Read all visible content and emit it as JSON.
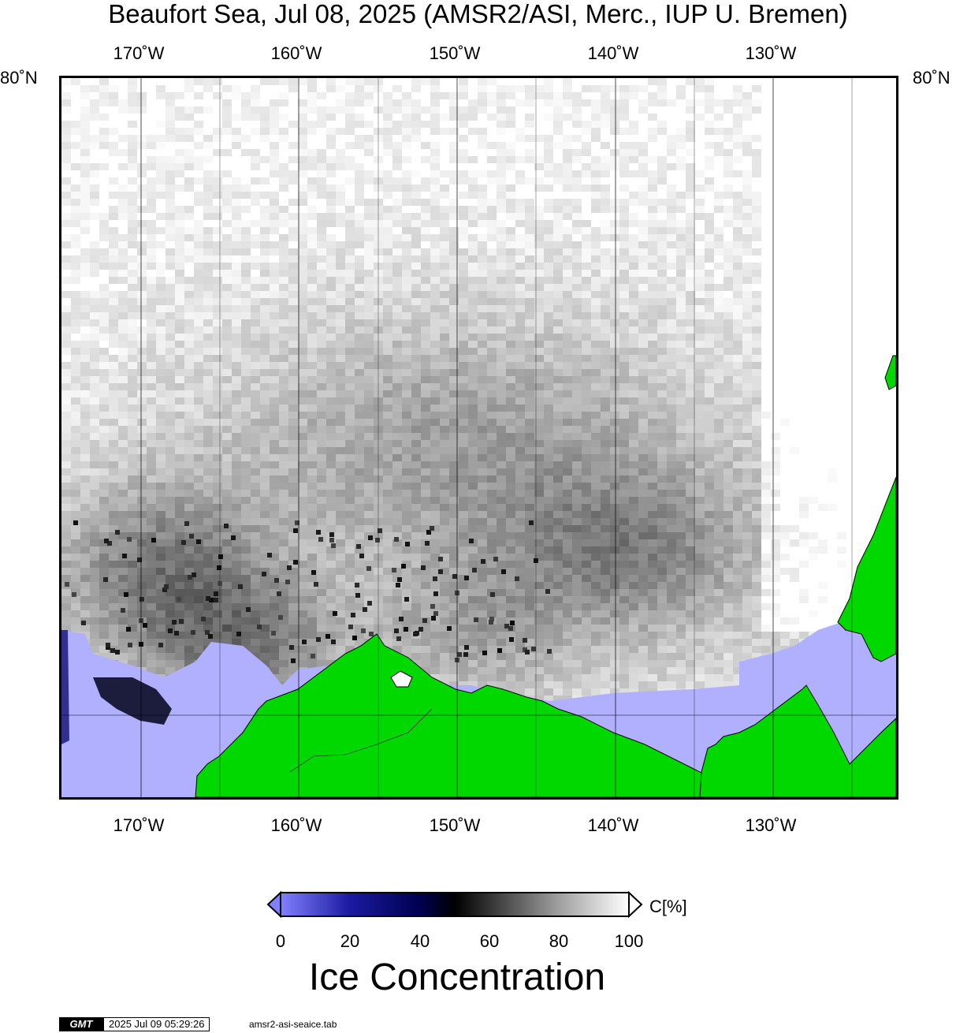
{
  "title": "Beaufort Sea, Jul 08, 2025 (AMSR2/ASI, Merc., IUP U. Bremen)",
  "lon_labels": [
    "170˚W",
    "160˚W",
    "150˚W",
    "140˚W",
    "130˚W"
  ],
  "lat_label": "80˚N",
  "colorbar": {
    "ticks": [
      "0",
      "20",
      "40",
      "60",
      "80",
      "100"
    ],
    "unit": "C[%]",
    "title": "Ice Concentration",
    "stops": [
      {
        "value": 0,
        "color": "#8080ff"
      },
      {
        "value": 20,
        "color": "#1a1aa0"
      },
      {
        "value": 40,
        "color": "#000050"
      },
      {
        "value": 50,
        "color": "#000000"
      },
      {
        "value": 60,
        "color": "#333333"
      },
      {
        "value": 80,
        "color": "#a0a0a0"
      },
      {
        "value": 100,
        "color": "#ffffff"
      }
    ]
  },
  "colors": {
    "land": "#00d800",
    "open_water": "#b0b0ff",
    "low_ice": "#303090",
    "grid": "#000000"
  },
  "footer": {
    "logo": "GMT",
    "timestamp": "2025 Jul 09 05:29:26",
    "source": "amsr2-asi-seaice.tab"
  }
}
